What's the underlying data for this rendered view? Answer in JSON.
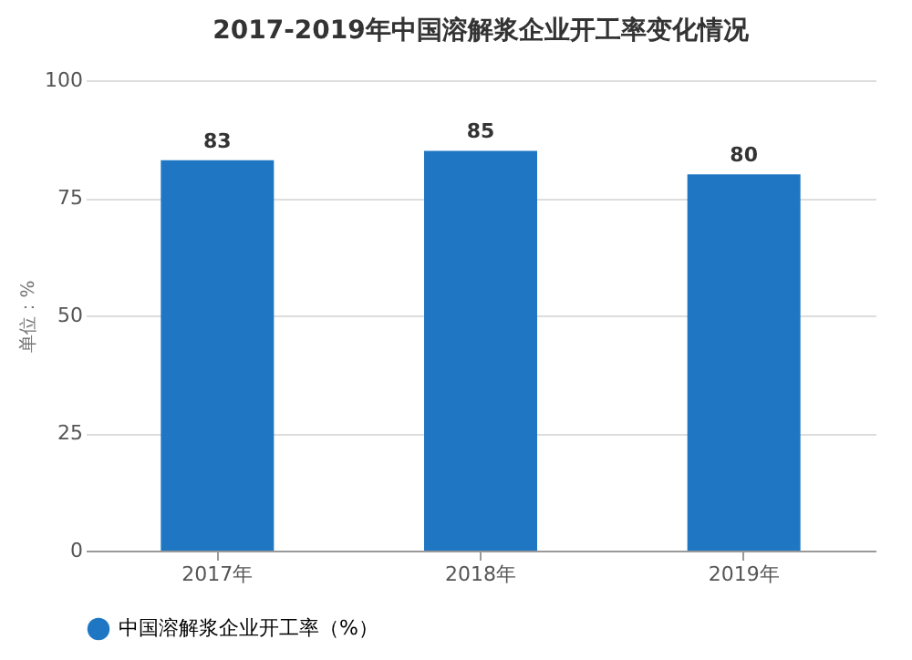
{
  "chart_data": {
    "type": "bar",
    "title": "2017-2019年中国溶解浆企业开工率变化情况",
    "ylabel": "单位：%",
    "categories": [
      "2017年",
      "2018年",
      "2019年"
    ],
    "series": [
      {
        "name": "中国溶解浆企业开工率（%）",
        "color": "#1f77c4",
        "values": [
          83,
          85,
          80
        ]
      }
    ],
    "ylim": [
      0,
      100
    ],
    "yticks": [
      0,
      25,
      50,
      75,
      100
    ],
    "grid": "y",
    "legend": "bottom",
    "data_labels": true
  }
}
